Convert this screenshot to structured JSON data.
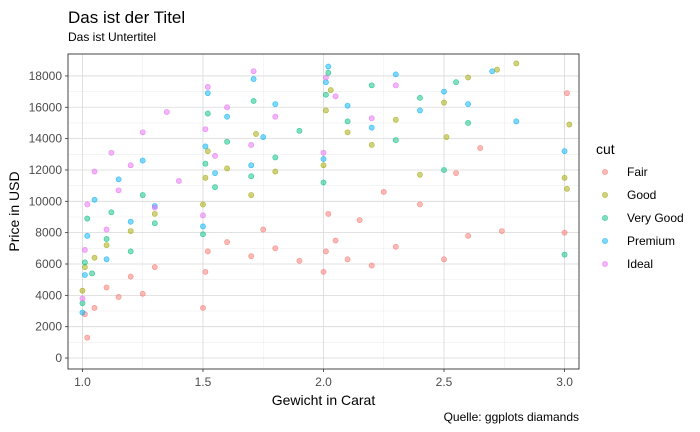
{
  "chart_data": {
    "type": "scatter",
    "title": "Das ist der Titel",
    "subtitle": "Das ist Untertitel",
    "caption": "Quelle: ggplots diamands",
    "xlabel": "Gewicht in Carat",
    "ylabel": "Price in USD",
    "xlim": [
      0.94,
      3.06
    ],
    "ylim": [
      -700,
      19400
    ],
    "x_ticks": [
      1.0,
      1.5,
      2.0,
      2.5,
      3.0
    ],
    "x_tick_labels": [
      "1.0",
      "1.5",
      "2.0",
      "2.5",
      "3.0"
    ],
    "y_ticks": [
      0,
      2000,
      4000,
      6000,
      8000,
      10000,
      12000,
      14000,
      16000,
      18000
    ],
    "y_tick_labels": [
      "0",
      "2000",
      "4000",
      "6000",
      "8000",
      "10000",
      "12000",
      "14000",
      "16000",
      "18000"
    ],
    "grid": true,
    "point_alpha": 0.5,
    "legend": {
      "title": "cut",
      "position": "right",
      "entries": [
        "Fair",
        "Good",
        "Very Good",
        "Premium",
        "Ideal"
      ]
    },
    "series": [
      {
        "name": "Fair",
        "color": "#F8766D",
        "points": [
          [
            1.01,
            2800
          ],
          [
            1.02,
            1300
          ],
          [
            1.05,
            3200
          ],
          [
            1.1,
            4500
          ],
          [
            1.15,
            3900
          ],
          [
            1.2,
            5200
          ],
          [
            1.25,
            4100
          ],
          [
            1.3,
            5800
          ],
          [
            1.5,
            3200
          ],
          [
            1.51,
            5500
          ],
          [
            1.52,
            6800
          ],
          [
            1.6,
            7400
          ],
          [
            1.7,
            6500
          ],
          [
            1.75,
            8200
          ],
          [
            1.8,
            7000
          ],
          [
            1.9,
            6200
          ],
          [
            2.0,
            5500
          ],
          [
            2.01,
            6800
          ],
          [
            2.02,
            9200
          ],
          [
            2.05,
            7500
          ],
          [
            2.1,
            6300
          ],
          [
            2.15,
            8800
          ],
          [
            2.2,
            5900
          ],
          [
            2.25,
            10600
          ],
          [
            2.3,
            7100
          ],
          [
            2.4,
            9800
          ],
          [
            2.5,
            6300
          ],
          [
            2.55,
            11800
          ],
          [
            2.6,
            7800
          ],
          [
            2.65,
            13400
          ],
          [
            2.74,
            8100
          ],
          [
            3.0,
            8000
          ],
          [
            3.01,
            16900
          ]
        ]
      },
      {
        "name": "Good",
        "color": "#A3A500",
        "points": [
          [
            1.0,
            4300
          ],
          [
            1.01,
            5800
          ],
          [
            1.05,
            6400
          ],
          [
            1.1,
            7200
          ],
          [
            1.2,
            8100
          ],
          [
            1.3,
            9200
          ],
          [
            1.5,
            9800
          ],
          [
            1.51,
            11500
          ],
          [
            1.52,
            13200
          ],
          [
            1.6,
            12100
          ],
          [
            1.7,
            10400
          ],
          [
            1.72,
            14300
          ],
          [
            1.8,
            11900
          ],
          [
            2.0,
            12300
          ],
          [
            2.01,
            15800
          ],
          [
            2.03,
            17100
          ],
          [
            2.1,
            14400
          ],
          [
            2.2,
            13600
          ],
          [
            2.3,
            15200
          ],
          [
            2.4,
            11700
          ],
          [
            2.5,
            16300
          ],
          [
            2.51,
            14100
          ],
          [
            2.6,
            17900
          ],
          [
            2.72,
            18400
          ],
          [
            2.8,
            18800
          ],
          [
            3.0,
            11500
          ],
          [
            3.01,
            10800
          ],
          [
            3.02,
            14900
          ]
        ]
      },
      {
        "name": "Very Good",
        "color": "#00BF7D",
        "points": [
          [
            1.0,
            3500
          ],
          [
            1.01,
            6100
          ],
          [
            1.02,
            8900
          ],
          [
            1.04,
            5400
          ],
          [
            1.1,
            7600
          ],
          [
            1.12,
            9300
          ],
          [
            1.2,
            6800
          ],
          [
            1.25,
            10400
          ],
          [
            1.3,
            8600
          ],
          [
            1.5,
            7900
          ],
          [
            1.51,
            12400
          ],
          [
            1.52,
            15600
          ],
          [
            1.55,
            10900
          ],
          [
            1.6,
            13800
          ],
          [
            1.7,
            11600
          ],
          [
            1.71,
            16400
          ],
          [
            1.8,
            12800
          ],
          [
            1.9,
            14500
          ],
          [
            2.0,
            11200
          ],
          [
            2.01,
            16800
          ],
          [
            2.02,
            18200
          ],
          [
            2.1,
            15100
          ],
          [
            2.2,
            17400
          ],
          [
            2.3,
            13900
          ],
          [
            2.4,
            16600
          ],
          [
            2.5,
            12000
          ],
          [
            2.55,
            17600
          ],
          [
            2.6,
            15000
          ],
          [
            3.0,
            6600
          ]
        ]
      },
      {
        "name": "Premium",
        "color": "#00B0F6",
        "points": [
          [
            1.0,
            2900
          ],
          [
            1.01,
            5300
          ],
          [
            1.02,
            7800
          ],
          [
            1.05,
            10100
          ],
          [
            1.1,
            6300
          ],
          [
            1.15,
            11400
          ],
          [
            1.2,
            8700
          ],
          [
            1.25,
            12600
          ],
          [
            1.3,
            9700
          ],
          [
            1.5,
            8400
          ],
          [
            1.51,
            13500
          ],
          [
            1.52,
            16900
          ],
          [
            1.55,
            11800
          ],
          [
            1.6,
            15400
          ],
          [
            1.7,
            12300
          ],
          [
            1.71,
            17800
          ],
          [
            1.75,
            14100
          ],
          [
            1.8,
            16200
          ],
          [
            2.0,
            12700
          ],
          [
            2.01,
            17600
          ],
          [
            2.02,
            18600
          ],
          [
            2.1,
            16100
          ],
          [
            2.2,
            14700
          ],
          [
            2.3,
            18100
          ],
          [
            2.4,
            15800
          ],
          [
            2.5,
            17000
          ],
          [
            2.6,
            16200
          ],
          [
            2.7,
            18300
          ],
          [
            2.8,
            15100
          ],
          [
            3.0,
            13200
          ]
        ]
      },
      {
        "name": "Ideal",
        "color": "#E76BF3",
        "points": [
          [
            1.0,
            3800
          ],
          [
            1.01,
            6900
          ],
          [
            1.02,
            9800
          ],
          [
            1.05,
            11900
          ],
          [
            1.1,
            8200
          ],
          [
            1.12,
            13100
          ],
          [
            1.15,
            10700
          ],
          [
            1.2,
            12300
          ],
          [
            1.25,
            14400
          ],
          [
            1.3,
            9600
          ],
          [
            1.35,
            15700
          ],
          [
            1.4,
            11300
          ],
          [
            1.5,
            9100
          ],
          [
            1.51,
            14600
          ],
          [
            1.52,
            17300
          ],
          [
            1.55,
            12900
          ],
          [
            1.6,
            16000
          ],
          [
            1.7,
            13600
          ],
          [
            1.71,
            18300
          ],
          [
            1.8,
            15400
          ],
          [
            2.0,
            13100
          ],
          [
            2.01,
            17900
          ],
          [
            2.05,
            16700
          ],
          [
            2.2,
            15300
          ],
          [
            2.3,
            17400
          ]
        ]
      }
    ]
  }
}
